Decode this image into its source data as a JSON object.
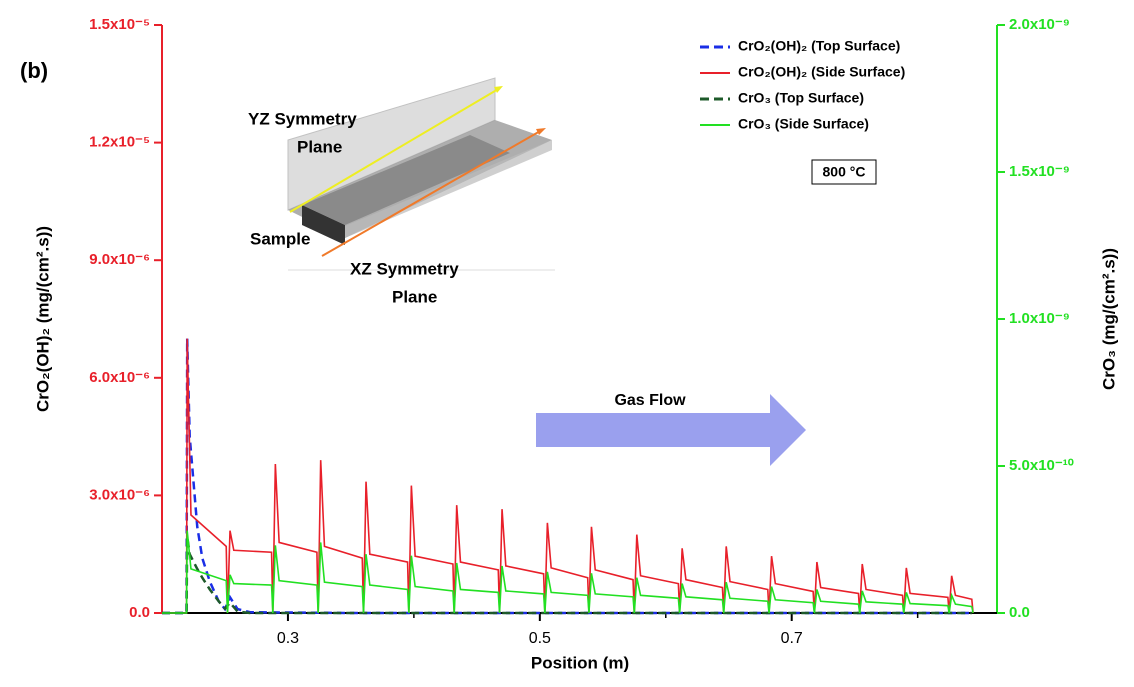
{
  "chart_data": {
    "type": "line",
    "panel_label": "(b)",
    "xlabel": "Position (m)",
    "ylabel": "CrO₂(OH)₂ (mg/(cm².s))",
    "y2label": "CrO₃ (mg/(cm².s))",
    "xlim": [
      0.2,
      0.863
    ],
    "xticks": [
      0.3,
      0.5,
      0.7
    ],
    "xminorticks": [
      0.4,
      0.6,
      0.8
    ],
    "ylim": [
      0,
      1.5e-05
    ],
    "yticks": [
      {
        "value": 0,
        "label": "0.0"
      },
      {
        "value": 3e-06,
        "label": "3.0x10⁻⁶"
      },
      {
        "value": 6e-06,
        "label": "6.0x10⁻⁶"
      },
      {
        "value": 9e-06,
        "label": "9.0x10⁻⁶"
      },
      {
        "value": 1.2e-05,
        "label": "1.2x10⁻⁵"
      },
      {
        "value": 1.5e-05,
        "label": "1.5x10⁻⁵"
      }
    ],
    "y2lim": [
      0,
      2e-09
    ],
    "y2ticks": [
      {
        "value": 0,
        "label": "0.0"
      },
      {
        "value": 5e-10,
        "label": "5.0x10⁻¹⁰"
      },
      {
        "value": 1e-09,
        "label": "1.0x10⁻⁹"
      },
      {
        "value": 1.5e-09,
        "label": "1.5x10⁻⁹"
      },
      {
        "value": 2e-09,
        "label": "2.0x10⁻⁹"
      }
    ],
    "y_axis_color": "#e8202a",
    "y2_axis_color": "#22e022",
    "legend_position": "top-right",
    "series": [
      {
        "name": "CrO₂(OH)₂ (Top Surface)",
        "color": "#1a2ee6",
        "dash": true,
        "axis": "y",
        "x": [
          0.2,
          0.2195,
          0.22,
          0.222,
          0.228,
          0.232,
          0.238,
          0.245,
          0.25,
          0.254,
          0.26,
          0.27,
          0.35,
          0.843
        ],
        "values": [
          0,
          0,
          7e-06,
          4.5e-06,
          2.2e-06,
          1.4e-06,
          8e-07,
          3e-07,
          1e-07,
          4e-07,
          1e-07,
          2e-08,
          0,
          0
        ]
      },
      {
        "name": "CrO₂(OH)₂ (Side Surface)",
        "color": "#e8202a",
        "dash": false,
        "axis": "y",
        "x": [
          0.2,
          0.2195,
          0.22,
          0.223,
          0.251,
          0.252,
          0.254,
          0.257,
          0.287,
          0.288,
          0.29,
          0.293,
          0.323,
          0.324,
          0.326,
          0.329,
          0.359,
          0.36,
          0.362,
          0.365,
          0.395,
          0.396,
          0.398,
          0.401,
          0.431,
          0.432,
          0.434,
          0.437,
          0.467,
          0.468,
          0.47,
          0.473,
          0.503,
          0.504,
          0.506,
          0.509,
          0.538,
          0.539,
          0.541,
          0.544,
          0.574,
          0.575,
          0.577,
          0.58,
          0.61,
          0.611,
          0.613,
          0.616,
          0.645,
          0.646,
          0.648,
          0.651,
          0.681,
          0.682,
          0.684,
          0.687,
          0.717,
          0.718,
          0.72,
          0.723,
          0.753,
          0.754,
          0.756,
          0.759,
          0.788,
          0.789,
          0.791,
          0.794,
          0.824,
          0.825,
          0.827,
          0.83,
          0.843,
          0.844
        ],
        "values": [
          0,
          0,
          7e-06,
          2.5e-06,
          1.7e-06,
          0,
          2.1e-06,
          1.6e-06,
          1.55e-06,
          0,
          3.8e-06,
          1.8e-06,
          1.55e-06,
          0,
          3.9e-06,
          1.7e-06,
          1.4e-06,
          0,
          3.35e-06,
          1.5e-06,
          1.3e-06,
          0,
          3.25e-06,
          1.45e-06,
          1.25e-06,
          0,
          2.75e-06,
          1.3e-06,
          1.1e-06,
          0,
          2.65e-06,
          1.2e-06,
          1e-06,
          0,
          2.3e-06,
          1.15e-06,
          9e-07,
          0,
          2.2e-06,
          1.1e-06,
          8.5e-07,
          0,
          2e-06,
          9.5e-07,
          7.5e-07,
          0,
          1.65e-06,
          8.5e-07,
          6.5e-07,
          0,
          1.7e-06,
          8e-07,
          6e-07,
          0,
          1.45e-06,
          7.5e-07,
          5.5e-07,
          0,
          1.3e-06,
          6.5e-07,
          5e-07,
          0,
          1.25e-06,
          6e-07,
          4.5e-07,
          0,
          1.15e-06,
          5e-07,
          4e-07,
          0,
          9.5e-07,
          4.5e-07,
          3.5e-07,
          0
        ]
      },
      {
        "name": "CrO₃ (Top Surface)",
        "color": "#1e5a2a",
        "dash": true,
        "axis": "y2",
        "x": [
          0.2,
          0.2195,
          0.22,
          0.222,
          0.228,
          0.232,
          0.238,
          0.245,
          0.25,
          0.254,
          0.26,
          0.27,
          0.35,
          0.843
        ],
        "values": [
          0,
          0,
          2.6e-10,
          2e-10,
          1.5e-10,
          1.2e-10,
          8e-11,
          4e-11,
          1.5e-11,
          3.5e-11,
          5e-12,
          0,
          0,
          0
        ]
      },
      {
        "name": "CrO₃ (Side Surface)",
        "color": "#22e022",
        "dash": false,
        "axis": "y2",
        "x": [
          0.2,
          0.2195,
          0.22,
          0.223,
          0.251,
          0.252,
          0.254,
          0.257,
          0.287,
          0.288,
          0.29,
          0.293,
          0.323,
          0.324,
          0.326,
          0.329,
          0.359,
          0.36,
          0.362,
          0.365,
          0.395,
          0.396,
          0.398,
          0.401,
          0.431,
          0.432,
          0.434,
          0.437,
          0.467,
          0.468,
          0.47,
          0.473,
          0.503,
          0.504,
          0.506,
          0.509,
          0.538,
          0.539,
          0.541,
          0.544,
          0.574,
          0.575,
          0.577,
          0.58,
          0.61,
          0.611,
          0.613,
          0.616,
          0.645,
          0.646,
          0.648,
          0.651,
          0.681,
          0.682,
          0.684,
          0.687,
          0.717,
          0.718,
          0.72,
          0.723,
          0.753,
          0.754,
          0.756,
          0.759,
          0.788,
          0.789,
          0.791,
          0.794,
          0.824,
          0.825,
          0.827,
          0.83,
          0.843,
          0.844
        ],
        "values": [
          0,
          0,
          2.8e-10,
          1.5e-10,
          1.1e-10,
          0,
          1.3e-10,
          1e-10,
          9.5e-11,
          0,
          2.3e-10,
          1.1e-10,
          9.5e-11,
          0,
          2.4e-10,
          1.05e-10,
          9e-11,
          0,
          2e-10,
          9.5e-11,
          8e-11,
          0,
          1.95e-10,
          9e-11,
          7.5e-11,
          0,
          1.7e-10,
          8e-11,
          7e-11,
          0,
          1.6e-10,
          7.5e-11,
          6.5e-11,
          0,
          1.4e-10,
          7e-11,
          6e-11,
          0,
          1.35e-10,
          6.5e-11,
          5.5e-11,
          0,
          1.2e-10,
          6e-11,
          5e-11,
          0,
          1e-10,
          5.5e-11,
          4.5e-11,
          0,
          1.05e-10,
          5e-11,
          4e-11,
          0,
          9e-11,
          4.5e-11,
          3.5e-11,
          0,
          8e-11,
          4e-11,
          3e-11,
          0,
          7.5e-11,
          3.8e-11,
          3e-11,
          0,
          7e-11,
          3.2e-11,
          2.5e-11,
          0,
          6e-11,
          3e-11,
          2.2e-11,
          0
        ]
      }
    ],
    "annotations": {
      "gas_flow": "Gas Flow",
      "temperature": "800 °C"
    },
    "inset": {
      "yz_plane": [
        "YZ Symmetry",
        "Plane"
      ],
      "sample": "Sample",
      "xz_plane": [
        "XZ Symmetry",
        "Plane"
      ]
    }
  }
}
